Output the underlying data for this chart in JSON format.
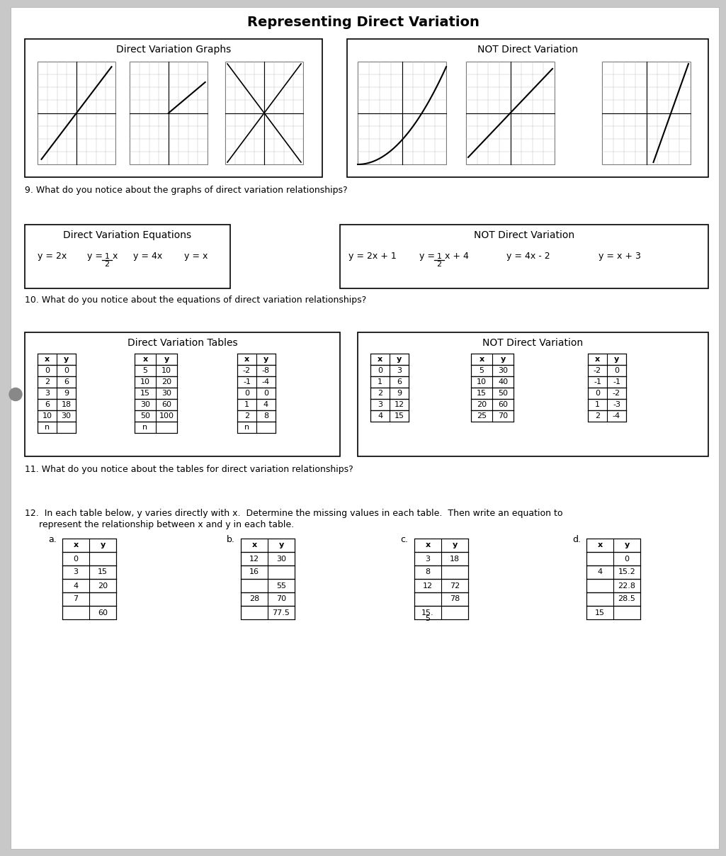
{
  "title": "Representing Direct Variation",
  "bg_color": "#c8c8c8",
  "q9": "9. What do you notice about the graphs of direct variation relationships?",
  "q10": "10. What do you notice about the equations of direct variation relationships?",
  "q11": "11. What do you notice about the tables for direct variation relationships?",
  "q12_line1": "12.  In each table below, y varies directly with x.  Determine the missing values in each table.  Then write an equation to",
  "q12_line2": "     represent the relationship between x and y in each table.",
  "dv_graphs_label": "Direct Variation Graphs",
  "not_dv_graphs_label": "NOT Direct Variation",
  "dv_eq_label": "Direct Variation Equations",
  "not_dv_eq_label": "NOT Direct Variation",
  "dv_tables_label": "Direct Variation Tables",
  "not_dv_tables_label": "NOT Direct Variation",
  "dv_table1_headers": [
    "x",
    "y"
  ],
  "dv_table1_rows": [
    [
      "0",
      "0"
    ],
    [
      "2",
      "6"
    ],
    [
      "3",
      "9"
    ],
    [
      "6",
      "18"
    ],
    [
      "10",
      "30"
    ],
    [
      "n",
      ""
    ]
  ],
  "dv_table2_headers": [
    "x",
    "y"
  ],
  "dv_table2_rows": [
    [
      "5",
      "10"
    ],
    [
      "10",
      "20"
    ],
    [
      "15",
      "30"
    ],
    [
      "30",
      "60"
    ],
    [
      "50",
      "100"
    ],
    [
      "n",
      ""
    ]
  ],
  "dv_table3_headers": [
    "x",
    "y"
  ],
  "dv_table3_rows": [
    [
      "-2",
      "-8"
    ],
    [
      "-1",
      "-4"
    ],
    [
      "0",
      "0"
    ],
    [
      "1",
      "4"
    ],
    [
      "2",
      "8"
    ],
    [
      "n",
      ""
    ]
  ],
  "not_table1_headers": [
    "x",
    "y"
  ],
  "not_table1_rows": [
    [
      "0",
      "3"
    ],
    [
      "1",
      "6"
    ],
    [
      "2",
      "9"
    ],
    [
      "3",
      "12"
    ],
    [
      "4",
      "15"
    ]
  ],
  "not_table2_headers": [
    "x",
    "y"
  ],
  "not_table2_rows": [
    [
      "5",
      "30"
    ],
    [
      "10",
      "40"
    ],
    [
      "15",
      "50"
    ],
    [
      "20",
      "60"
    ],
    [
      "25",
      "70"
    ]
  ],
  "not_table3_headers": [
    "x",
    "y"
  ],
  "not_table3_rows": [
    [
      "-2",
      "0"
    ],
    [
      "-1",
      "-1"
    ],
    [
      "0",
      "-2"
    ],
    [
      "1",
      "-3"
    ],
    [
      "2",
      "-4"
    ]
  ],
  "q12a_headers": [
    "x",
    "y"
  ],
  "q12a_rows": [
    [
      "0",
      ""
    ],
    [
      "3",
      "15"
    ],
    [
      "4",
      "20"
    ],
    [
      "7",
      ""
    ],
    [
      "",
      "60"
    ]
  ],
  "q12b_headers": [
    "x",
    "y"
  ],
  "q12b_rows": [
    [
      "12",
      "30"
    ],
    [
      "16",
      ""
    ],
    [
      "",
      "55"
    ],
    [
      "28",
      "70"
    ],
    [
      "",
      "77.5"
    ]
  ],
  "q12c_headers": [
    "x",
    "y"
  ],
  "q12c_rows": [
    [
      "3",
      "18"
    ],
    [
      "8",
      ""
    ],
    [
      "12",
      "72"
    ],
    [
      "",
      "78"
    ],
    [
      "15.",
      ""
    ]
  ],
  "q12c_last_x": "5",
  "q12d_headers": [
    "x",
    "y"
  ],
  "q12d_rows": [
    [
      "",
      "0"
    ],
    [
      "4",
      "15.2"
    ],
    [
      "",
      "22.8"
    ],
    [
      "",
      "28.5"
    ],
    [
      "15",
      ""
    ]
  ],
  "q12_labels": [
    "a.",
    "b.",
    "c.",
    "d."
  ]
}
